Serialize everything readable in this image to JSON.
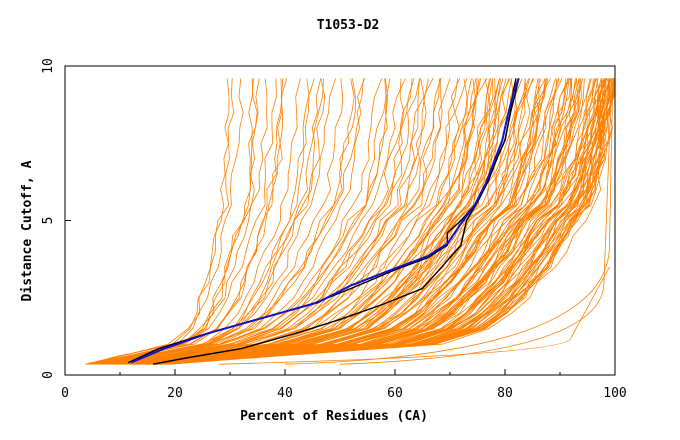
{
  "chart_data": {
    "type": "line",
    "title": "T1053-D2",
    "xlabel": "Percent of Residues (CA)",
    "ylabel": "Distance Cutoff, A",
    "xlim": [
      0,
      100
    ],
    "ylim": [
      0,
      10
    ],
    "x_ticks": [
      0,
      20,
      40,
      60,
      80,
      100
    ],
    "y_ticks": [
      0,
      5,
      10
    ],
    "grid": false,
    "legend": "none",
    "colors": {
      "models": "#ff8000",
      "highlight_black": "#000000",
      "highlight_blue": "#1010c8"
    },
    "highlight_series": [
      {
        "color": "#000000",
        "points": [
          [
            16,
            0.35
          ],
          [
            22,
            0.55
          ],
          [
            32,
            0.85
          ],
          [
            42,
            1.35
          ],
          [
            50,
            1.8
          ],
          [
            58,
            2.3
          ],
          [
            65,
            2.8
          ],
          [
            69,
            3.6
          ],
          [
            72,
            4.2
          ],
          [
            73,
            5.0
          ],
          [
            75,
            5.6
          ],
          [
            77,
            6.3
          ],
          [
            78.5,
            7.0
          ],
          [
            80,
            7.6
          ],
          [
            81,
            8.5
          ],
          [
            81.5,
            9.2
          ],
          [
            82,
            9.6
          ]
        ]
      },
      {
        "color": "#000000",
        "points": [
          [
            11.5,
            0.4
          ],
          [
            17,
            0.85
          ],
          [
            25,
            1.3
          ],
          [
            35,
            1.8
          ],
          [
            45,
            2.3
          ],
          [
            52,
            2.8
          ],
          [
            60,
            3.4
          ],
          [
            66,
            3.8
          ],
          [
            69.5,
            4.2
          ],
          [
            69.5,
            4.6
          ],
          [
            72,
            5.0
          ],
          [
            75,
            5.6
          ],
          [
            77,
            6.3
          ],
          [
            78.5,
            7.0
          ],
          [
            80,
            7.6
          ],
          [
            81,
            8.5
          ],
          [
            82,
            9.2
          ],
          [
            82.5,
            9.6
          ]
        ]
      },
      {
        "color": "#1010c8",
        "points": [
          [
            12,
            0.4
          ],
          [
            18,
            0.85
          ],
          [
            26,
            1.35
          ],
          [
            36,
            1.85
          ],
          [
            46,
            2.35
          ],
          [
            52,
            2.9
          ],
          [
            60,
            3.45
          ],
          [
            66,
            3.85
          ],
          [
            69.5,
            4.25
          ],
          [
            72,
            4.9
          ],
          [
            74.5,
            5.5
          ],
          [
            76.5,
            6.2
          ],
          [
            78,
            6.9
          ],
          [
            79.5,
            7.6
          ],
          [
            80.5,
            8.4
          ],
          [
            81.5,
            9.1
          ],
          [
            82.5,
            9.6
          ]
        ]
      }
    ],
    "band_description_curves": [
      {
        "x0": 4,
        "x1": 20,
        "x5": 28,
        "x10": 30
      },
      {
        "x0": 6,
        "x1": 24,
        "x5": 38,
        "x10": 42
      },
      {
        "x0": 8,
        "x1": 30,
        "x5": 55,
        "x10": 62
      },
      {
        "x0": 10,
        "x1": 40,
        "x5": 68,
        "x10": 76
      },
      {
        "x0": 12,
        "x1": 48,
        "x5": 75,
        "x10": 84
      },
      {
        "x0": 14,
        "x1": 55,
        "x5": 82,
        "x10": 92
      },
      {
        "x0": 16,
        "x1": 62,
        "x5": 88,
        "x10": 99
      },
      {
        "x0": 18,
        "x1": 68,
        "x5": 94,
        "x10": 99.5
      },
      {
        "x0": 40,
        "x1": 86,
        "x5": 99,
        "x10": 99.8
      }
    ]
  }
}
